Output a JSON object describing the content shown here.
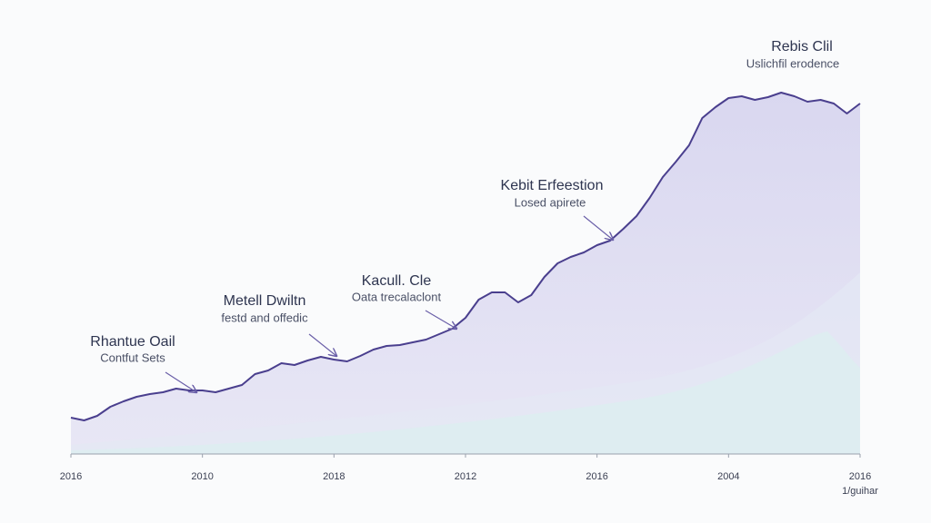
{
  "chart_data": {
    "type": "area",
    "title": "Rebis Clil",
    "subtitle": "Uslichfil erodence",
    "annotations": [
      {
        "title": "Rhantue Oail",
        "text": "Contfut Sets"
      },
      {
        "title": "Metell Dwiltn",
        "text": "festd and offedic"
      },
      {
        "title": "Kacull. Cle",
        "text": "Oata trecalaclont"
      },
      {
        "title": "Kebit Erfeestion",
        "text": "Losed apirete"
      }
    ],
    "x_note": "1/guihar",
    "xlim": [
      0,
      60
    ],
    "xticks": [
      {
        "value": 0,
        "label": "2016"
      },
      {
        "value": 10,
        "label": "2010"
      },
      {
        "value": 20,
        "label": "2018"
      },
      {
        "value": 30,
        "label": "2012"
      },
      {
        "value": 40,
        "label": "2016"
      },
      {
        "value": 50,
        "label": "2004"
      },
      {
        "value": 60,
        "label": "2016"
      }
    ],
    "ylim": [
      0,
      100
    ],
    "series": [
      {
        "color": "#4a3f8e",
        "values": [
          10,
          9.25,
          10.5,
          13,
          14.5,
          15.75,
          16.5,
          17,
          18,
          17.5,
          17.5,
          17,
          18,
          19,
          22,
          23,
          25,
          24.5,
          25.75,
          26.75,
          26,
          25.5,
          27,
          28.75,
          29.75,
          30,
          30.75,
          31.5,
          33,
          34.5,
          37.5,
          42.5,
          44.5,
          44.5,
          41.75,
          43.75,
          48.75,
          52.5,
          54.25,
          55.5,
          57.5,
          58.75,
          62,
          65.5,
          70.5,
          76.25,
          80.5,
          85,
          92.5,
          95.5,
          98,
          98.5,
          97.5,
          98.25,
          99.5,
          98.5,
          97,
          97.5,
          96.5,
          93.75,
          96.5
        ]
      }
    ]
  }
}
